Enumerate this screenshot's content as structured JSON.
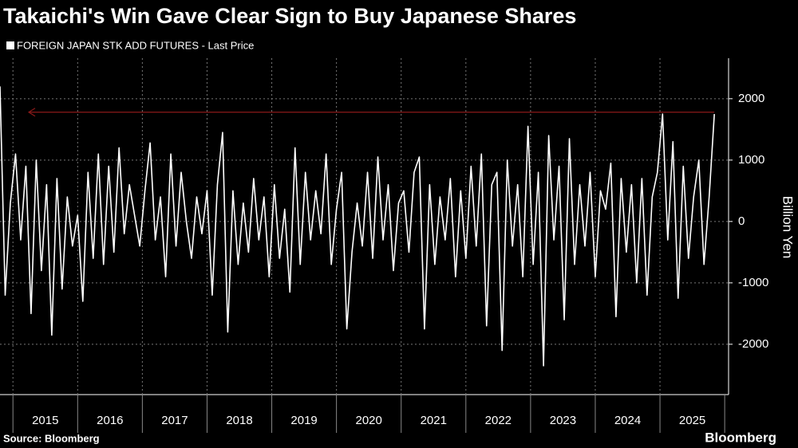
{
  "chart_data": {
    "type": "line",
    "title": "Takaichi's Win Gave Clear Sign to Buy Japanese Shares",
    "y_axis_label": "Billion Yen",
    "source": "Source: Bloomberg",
    "brand": "Bloomberg",
    "x": [
      2014.8,
      2014.88,
      2014.96,
      2015.04,
      2015.12,
      2015.2,
      2015.28,
      2015.36,
      2015.44,
      2015.52,
      2015.6,
      2015.68,
      2015.76,
      2015.84,
      2015.92,
      2016.0,
      2016.08,
      2016.16,
      2016.24,
      2016.32,
      2016.4,
      2016.48,
      2016.56,
      2016.64,
      2016.72,
      2016.8,
      2016.88,
      2016.96,
      2017.04,
      2017.12,
      2017.2,
      2017.28,
      2017.36,
      2017.44,
      2017.52,
      2017.6,
      2017.68,
      2017.76,
      2017.84,
      2017.92,
      2018.0,
      2018.08,
      2018.16,
      2018.24,
      2018.32,
      2018.4,
      2018.48,
      2018.56,
      2018.64,
      2018.72,
      2018.8,
      2018.88,
      2018.96,
      2019.04,
      2019.12,
      2019.2,
      2019.28,
      2019.36,
      2019.44,
      2019.52,
      2019.6,
      2019.68,
      2019.76,
      2019.84,
      2019.92,
      2020.0,
      2020.08,
      2020.16,
      2020.24,
      2020.32,
      2020.4,
      2020.48,
      2020.56,
      2020.64,
      2020.72,
      2020.8,
      2020.88,
      2020.96,
      2021.04,
      2021.12,
      2021.2,
      2021.28,
      2021.36,
      2021.44,
      2021.52,
      2021.6,
      2021.68,
      2021.76,
      2021.84,
      2021.92,
      2022.0,
      2022.08,
      2022.16,
      2022.24,
      2022.32,
      2022.4,
      2022.48,
      2022.56,
      2022.64,
      2022.72,
      2022.8,
      2022.88,
      2022.96,
      2023.04,
      2023.12,
      2023.2,
      2023.28,
      2023.36,
      2023.44,
      2023.52,
      2023.6,
      2023.68,
      2023.76,
      2023.84,
      2023.92,
      2024.0,
      2024.08,
      2024.16,
      2024.24,
      2024.32,
      2024.4,
      2024.48,
      2024.56,
      2024.64,
      2024.72,
      2024.8,
      2024.88,
      2024.96,
      2025.04,
      2025.12,
      2025.2,
      2025.28,
      2025.36,
      2025.44,
      2025.52,
      2025.6,
      2025.68,
      2025.76,
      2025.84
    ],
    "series": [
      {
        "name": "FOREIGN JAPAN STK ADD FUTURES - Last Price",
        "color": "#ffffff",
        "values": [
          2200,
          -1200,
          300,
          1100,
          -300,
          900,
          -1500,
          1000,
          -800,
          600,
          -1850,
          700,
          -1100,
          400,
          -400,
          100,
          -1300,
          800,
          -600,
          1100,
          -700,
          900,
          -500,
          1200,
          -200,
          600,
          100,
          -400,
          500,
          1280,
          -300,
          400,
          -900,
          1100,
          -400,
          800,
          0,
          -600,
          400,
          -200,
          500,
          -1200,
          600,
          1450,
          -1800,
          500,
          -700,
          300,
          -500,
          700,
          -300,
          400,
          -900,
          600,
          -600,
          200,
          -1150,
          1200,
          -700,
          800,
          -300,
          500,
          -200,
          1100,
          -700,
          200,
          800,
          -1750,
          -500,
          300,
          -400,
          800,
          -600,
          1050,
          -300,
          600,
          -800,
          300,
          500,
          -500,
          800,
          1050,
          -1750,
          600,
          -700,
          400,
          -300,
          700,
          -900,
          500,
          -600,
          900,
          -400,
          1100,
          -1700,
          600,
          800,
          -2100,
          1000,
          -400,
          600,
          -900,
          1550,
          -700,
          800,
          -2350,
          1400,
          -300,
          900,
          -1600,
          1350,
          -700,
          600,
          -400,
          800,
          -900,
          500,
          200,
          950,
          -1550,
          700,
          -500,
          600,
          -1000,
          700,
          -1200,
          400,
          800,
          1750,
          -300,
          1300,
          -1250,
          900,
          -600,
          400,
          1000,
          -700,
          400,
          1750
        ]
      }
    ],
    "reference_line": {
      "value": 1780,
      "color": "#8b1a1a"
    },
    "xlim": [
      2014.8,
      2026.06
    ],
    "xticks": [
      {
        "value": 2015,
        "label": "2015"
      },
      {
        "value": 2016,
        "label": "2016"
      },
      {
        "value": 2017,
        "label": "2017"
      },
      {
        "value": 2018,
        "label": "2018"
      },
      {
        "value": 2019,
        "label": "2019"
      },
      {
        "value": 2020,
        "label": "2020"
      },
      {
        "value": 2021,
        "label": "2021"
      },
      {
        "value": 2022,
        "label": "2022"
      },
      {
        "value": 2023,
        "label": "2023"
      },
      {
        "value": 2024,
        "label": "2024"
      },
      {
        "value": 2025,
        "label": "2025"
      }
    ],
    "ylim": [
      -2820,
      2660
    ],
    "yticks": [
      -2000,
      -1000,
      0,
      1000,
      2000
    ],
    "grid": true
  }
}
